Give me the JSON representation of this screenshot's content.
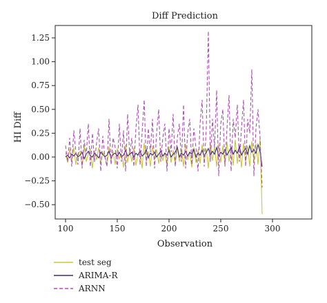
{
  "chart_data": {
    "type": "line",
    "title": "Diff Prediction",
    "xlabel": "Observation",
    "ylabel": "HI Diff",
    "xlim": [
      90,
      338
    ],
    "ylim": [
      -0.65,
      1.38
    ],
    "xticks": [
      100,
      150,
      200,
      250,
      300
    ],
    "yticks": [
      -0.5,
      -0.25,
      0.0,
      0.25,
      0.5,
      0.75,
      1.0,
      1.25
    ],
    "ytick_labels": [
      "−0.50",
      "−0.25",
      "0.00",
      "0.25",
      "0.50",
      "0.75",
      "1.00",
      "1.25"
    ],
    "grid": false,
    "legend_position": "below-left",
    "series": [
      {
        "name": "test seg",
        "color": "#c9c63a",
        "dash": "solid",
        "x_start": 100,
        "x_step": 2,
        "values": [
          0.05,
          -0.06,
          0.08,
          -0.04,
          0.1,
          -0.08,
          0.04,
          0.06,
          -0.1,
          0.12,
          -0.05,
          0.03,
          0.09,
          -0.12,
          0.07,
          -0.03,
          0.1,
          -0.07,
          0.05,
          0.02,
          -0.09,
          0.11,
          -0.04,
          0.06,
          -0.08,
          0.09,
          -0.02,
          0.04,
          -0.11,
          0.13,
          -0.06,
          0.08,
          -0.05,
          0.1,
          -0.09,
          0.03,
          0.07,
          -0.12,
          0.15,
          -0.05,
          0.06,
          -0.1,
          0.12,
          -0.03,
          0.08,
          -0.07,
          0.1,
          -0.04,
          0.05,
          -0.09,
          0.11,
          -0.06,
          0.07,
          -0.08,
          0.12,
          -0.05,
          0.09,
          -0.1,
          0.14,
          -0.03,
          0.06,
          -0.11,
          0.1,
          -0.06,
          0.08,
          -0.07,
          0.13,
          -0.05,
          0.09,
          -0.12,
          0.15,
          -0.04,
          0.11,
          -0.1,
          0.14,
          -0.06,
          0.12,
          -0.08,
          0.16,
          -0.05,
          0.1,
          -0.09,
          0.18,
          -0.07,
          0.13,
          -0.11,
          0.15,
          -0.06,
          0.12,
          -0.1,
          0.17,
          -0.05,
          0.14,
          -0.08,
          0.2,
          -0.6
        ]
      },
      {
        "name": "ARIMA-R",
        "color": "#3a2a7a",
        "dash": "solid",
        "x_start": 100,
        "x_step": 2,
        "values": [
          0.0,
          0.02,
          -0.01,
          0.03,
          0.01,
          0.04,
          0.0,
          0.02,
          0.05,
          -0.02,
          0.03,
          0.06,
          0.01,
          0.0,
          0.04,
          0.02,
          -0.01,
          0.05,
          0.03,
          0.0,
          0.02,
          0.06,
          -0.01,
          0.03,
          0.04,
          0.01,
          0.05,
          0.0,
          0.02,
          0.07,
          0.01,
          0.03,
          0.05,
          0.0,
          0.04,
          0.02,
          0.06,
          0.01,
          0.03,
          0.08,
          -0.01,
          0.04,
          0.02,
          0.05,
          0.0,
          0.03,
          0.06,
          0.01,
          0.04,
          0.02,
          0.07,
          0.0,
          0.03,
          0.05,
          0.1,
          0.0,
          0.04,
          0.02,
          0.06,
          0.01,
          0.05,
          0.03,
          0.08,
          0.0,
          0.04,
          0.02,
          0.07,
          0.01,
          0.05,
          0.09,
          0.02,
          0.06,
          0.03,
          0.1,
          0.01,
          0.05,
          0.03,
          0.08,
          0.02,
          0.06,
          0.1,
          0.03,
          0.07,
          0.04,
          0.11,
          0.02,
          0.06,
          0.09,
          0.03,
          0.12,
          0.05,
          0.08,
          0.04,
          0.13,
          0.06,
          -0.1
        ]
      },
      {
        "name": "ARNN",
        "color": "#b04cb8",
        "dash": "5,3",
        "x_start": 100,
        "x_step": 2,
        "values": [
          0.12,
          -0.05,
          0.2,
          -0.1,
          0.28,
          0.05,
          -0.08,
          0.3,
          -0.12,
          0.18,
          0.02,
          0.35,
          -0.1,
          0.25,
          -0.05,
          0.15,
          0.3,
          -0.15,
          0.22,
          0.0,
          -0.1,
          0.4,
          -0.08,
          0.2,
          0.1,
          -0.12,
          0.35,
          -0.05,
          0.28,
          -0.15,
          0.45,
          0.02,
          0.2,
          -0.1,
          0.3,
          0.55,
          -0.08,
          0.25,
          0.6,
          -0.1,
          0.3,
          0.05,
          0.4,
          -0.12,
          0.25,
          0.5,
          -0.05,
          0.2,
          0.35,
          -0.15,
          0.3,
          0.05,
          0.45,
          -0.1,
          0.2,
          0.35,
          -0.05,
          0.55,
          -0.12,
          0.25,
          0.4,
          -0.08,
          0.3,
          0.1,
          -0.15,
          0.35,
          0.6,
          -0.1,
          0.3,
          1.32,
          -0.05,
          0.4,
          0.1,
          0.7,
          -0.2,
          0.35,
          0.5,
          -0.1,
          0.3,
          0.65,
          -0.15,
          0.4,
          0.2,
          0.55,
          -0.05,
          0.3,
          0.6,
          -0.1,
          0.4,
          0.25,
          0.92,
          -0.2,
          0.3,
          0.5,
          0.2,
          -0.32
        ]
      }
    ]
  }
}
